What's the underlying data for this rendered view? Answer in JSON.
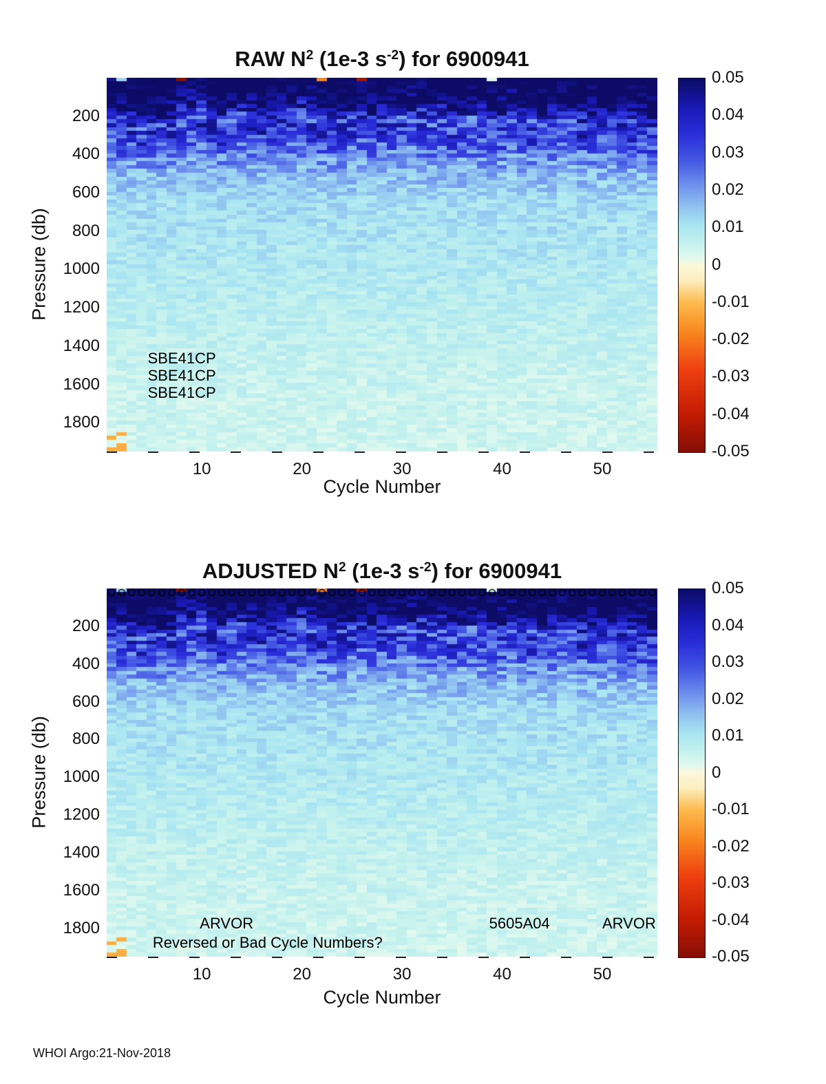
{
  "footer": "WHOI Argo:21-Nov-2018",
  "float_id": "6900941",
  "chart_data": [
    {
      "type": "heatmap",
      "title": "RAW N2 (1e-3 s-2) for 6900941",
      "title_parts": {
        "prefix": "RAW N",
        "sup1": "2",
        "mid": " (1e-3 s",
        "sup2": "-2",
        "suffix": ") for 6900941"
      },
      "xlabel": "Cycle Number",
      "ylabel": "Pressure (db)",
      "x_range": [
        1,
        55
      ],
      "y_range": [
        0,
        1950
      ],
      "value_range": [
        -0.05,
        0.05
      ],
      "cell_db": 20,
      "xticks": [
        10,
        20,
        30,
        40,
        50
      ],
      "yticks": [
        200,
        400,
        600,
        800,
        1000,
        1200,
        1400,
        1600,
        1800
      ],
      "colorbar_ticks": [
        0.05,
        0.04,
        0.03,
        0.02,
        0.01,
        0,
        -0.01,
        -0.02,
        -0.03,
        -0.04,
        -0.05
      ],
      "depth_profile": [
        {
          "db": 0,
          "n2": 0.055,
          "spread": 0.006
        },
        {
          "db": 140,
          "n2": 0.05,
          "spread": 0.01
        },
        {
          "db": 220,
          "n2": 0.032,
          "spread": 0.015
        },
        {
          "db": 300,
          "n2": 0.035,
          "spread": 0.013
        },
        {
          "db": 400,
          "n2": 0.024,
          "spread": 0.01
        },
        {
          "db": 500,
          "n2": 0.017,
          "spread": 0.006
        },
        {
          "db": 650,
          "n2": 0.012,
          "spread": 0.004
        },
        {
          "db": 900,
          "n2": 0.01,
          "spread": 0.0035
        },
        {
          "db": 1200,
          "n2": 0.008,
          "spread": 0.003
        },
        {
          "db": 1600,
          "n2": 0.0055,
          "spread": 0.0028
        },
        {
          "db": 1950,
          "n2": 0.0045,
          "spread": 0.0028
        }
      ],
      "surface_anomaly": {
        "max_db": 30,
        "prob": 0.12,
        "range": [
          -0.05,
          0.02
        ]
      },
      "annotations": [
        {
          "text": "SBE41CP",
          "cycle": 4.6,
          "db": 1465
        },
        {
          "text": "SBE41CP",
          "cycle": 4.6,
          "db": 1555
        },
        {
          "text": "SBE41CP",
          "cycle": 4.6,
          "db": 1645
        }
      ],
      "top_markers": false,
      "colormap": [
        {
          "v": 0.05,
          "c": "#0c0c66"
        },
        {
          "v": 0.042,
          "c": "#1a1ab8"
        },
        {
          "v": 0.035,
          "c": "#2b2fd9"
        },
        {
          "v": 0.028,
          "c": "#4458e4"
        },
        {
          "v": 0.022,
          "c": "#6b8cec"
        },
        {
          "v": 0.016,
          "c": "#8fc0f0"
        },
        {
          "v": 0.011,
          "c": "#a8e4f2"
        },
        {
          "v": 0.006,
          "c": "#c4f2ee"
        },
        {
          "v": 0.002,
          "c": "#e2f9ee"
        },
        {
          "v": 0,
          "c": "#fdf8da"
        },
        {
          "v": -0.004,
          "c": "#fceebe"
        },
        {
          "v": -0.01,
          "c": "#fdbb4e"
        },
        {
          "v": -0.018,
          "c": "#f9871f"
        },
        {
          "v": -0.028,
          "c": "#ee4010"
        },
        {
          "v": -0.04,
          "c": "#c31b03"
        },
        {
          "v": -0.05,
          "c": "#860e06"
        }
      ]
    },
    {
      "type": "heatmap",
      "title": "ADJUSTED N2 (1e-3 s-2) for 6900941",
      "title_parts": {
        "prefix": "ADJUSTED N",
        "sup1": "2",
        "mid": " (1e-3 s",
        "sup2": "-2",
        "suffix": ") for 6900941"
      },
      "xlabel": "Cycle Number",
      "ylabel": "Pressure (db)",
      "x_range": [
        1,
        55
      ],
      "y_range": [
        0,
        1950
      ],
      "value_range": [
        -0.05,
        0.05
      ],
      "cell_db": 20,
      "xticks": [
        10,
        20,
        30,
        40,
        50
      ],
      "yticks": [
        200,
        400,
        600,
        800,
        1000,
        1200,
        1400,
        1600,
        1800
      ],
      "colorbar_ticks": [
        0.05,
        0.04,
        0.03,
        0.02,
        0.01,
        0,
        -0.01,
        -0.02,
        -0.03,
        -0.04,
        -0.05
      ],
      "depth_profile": [
        {
          "db": 0,
          "n2": 0.055,
          "spread": 0.006
        },
        {
          "db": 140,
          "n2": 0.05,
          "spread": 0.01
        },
        {
          "db": 220,
          "n2": 0.032,
          "spread": 0.015
        },
        {
          "db": 300,
          "n2": 0.035,
          "spread": 0.013
        },
        {
          "db": 400,
          "n2": 0.024,
          "spread": 0.01
        },
        {
          "db": 500,
          "n2": 0.017,
          "spread": 0.006
        },
        {
          "db": 650,
          "n2": 0.012,
          "spread": 0.004
        },
        {
          "db": 900,
          "n2": 0.01,
          "spread": 0.0035
        },
        {
          "db": 1200,
          "n2": 0.008,
          "spread": 0.003
        },
        {
          "db": 1600,
          "n2": 0.0055,
          "spread": 0.0028
        },
        {
          "db": 1950,
          "n2": 0.0045,
          "spread": 0.0028
        }
      ],
      "surface_anomaly": {
        "max_db": 30,
        "prob": 0.12,
        "range": [
          -0.05,
          0.02
        ]
      },
      "annotations": [
        {
          "text": "ARVOR",
          "cycle": 9.8,
          "db": 1775
        },
        {
          "text": "5605A04",
          "cycle": 38.7,
          "db": 1775
        },
        {
          "text": "ARVOR",
          "cycle": 50,
          "db": 1775
        },
        {
          "text": "Reversed or Bad Cycle Numbers?",
          "cycle": 5.1,
          "db": 1878
        }
      ],
      "top_markers": true,
      "colormap": [
        {
          "v": 0.05,
          "c": "#0c0c66"
        },
        {
          "v": 0.042,
          "c": "#1a1ab8"
        },
        {
          "v": 0.035,
          "c": "#2b2fd9"
        },
        {
          "v": 0.028,
          "c": "#4458e4"
        },
        {
          "v": 0.022,
          "c": "#6b8cec"
        },
        {
          "v": 0.016,
          "c": "#8fc0f0"
        },
        {
          "v": 0.011,
          "c": "#a8e4f2"
        },
        {
          "v": 0.006,
          "c": "#c4f2ee"
        },
        {
          "v": 0.002,
          "c": "#e2f9ee"
        },
        {
          "v": 0,
          "c": "#fdf8da"
        },
        {
          "v": -0.004,
          "c": "#fceebe"
        },
        {
          "v": -0.01,
          "c": "#fdbb4e"
        },
        {
          "v": -0.018,
          "c": "#f9871f"
        },
        {
          "v": -0.028,
          "c": "#ee4010"
        },
        {
          "v": -0.04,
          "c": "#c31b03"
        },
        {
          "v": -0.05,
          "c": "#860e06"
        }
      ]
    }
  ]
}
